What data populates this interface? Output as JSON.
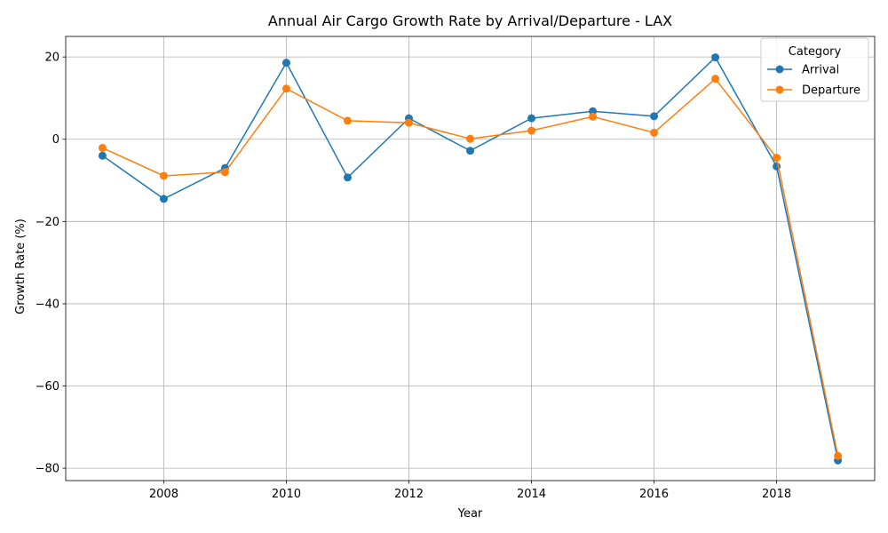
{
  "chart_data": {
    "type": "line",
    "title": "Annual Air Cargo Growth Rate by Arrival/Departure - LAX",
    "xlabel": "Year",
    "ylabel": "Growth Rate (%)",
    "x": [
      2007,
      2008,
      2009,
      2010,
      2011,
      2012,
      2013,
      2014,
      2015,
      2016,
      2017,
      2018,
      2019
    ],
    "series": [
      {
        "name": "Arrival",
        "color": "#1f77b4",
        "values": [
          -4.0,
          -14.5,
          -7.0,
          18.6,
          -9.3,
          5.1,
          -2.8,
          5.1,
          6.8,
          5.6,
          19.9,
          -6.6,
          -78.1
        ]
      },
      {
        "name": "Departure",
        "color": "#ff7f0e",
        "values": [
          -2.1,
          -8.9,
          -8.0,
          12.3,
          4.5,
          4.0,
          0.1,
          2.1,
          5.5,
          1.6,
          14.7,
          -4.5,
          -77.0
        ]
      }
    ],
    "xlim": [
      2006.4,
      2019.6
    ],
    "ylim": [
      -83.0,
      25.0
    ],
    "xticks": [
      2008,
      2010,
      2012,
      2014,
      2016,
      2018
    ],
    "yticks": [
      20,
      0,
      -20,
      -40,
      -60,
      -80
    ],
    "ytick_labels": [
      "20",
      "0",
      "−20",
      "−40",
      "−60",
      "−80"
    ],
    "grid": true,
    "legend": {
      "title": "Category",
      "placement": "top-right"
    }
  }
}
